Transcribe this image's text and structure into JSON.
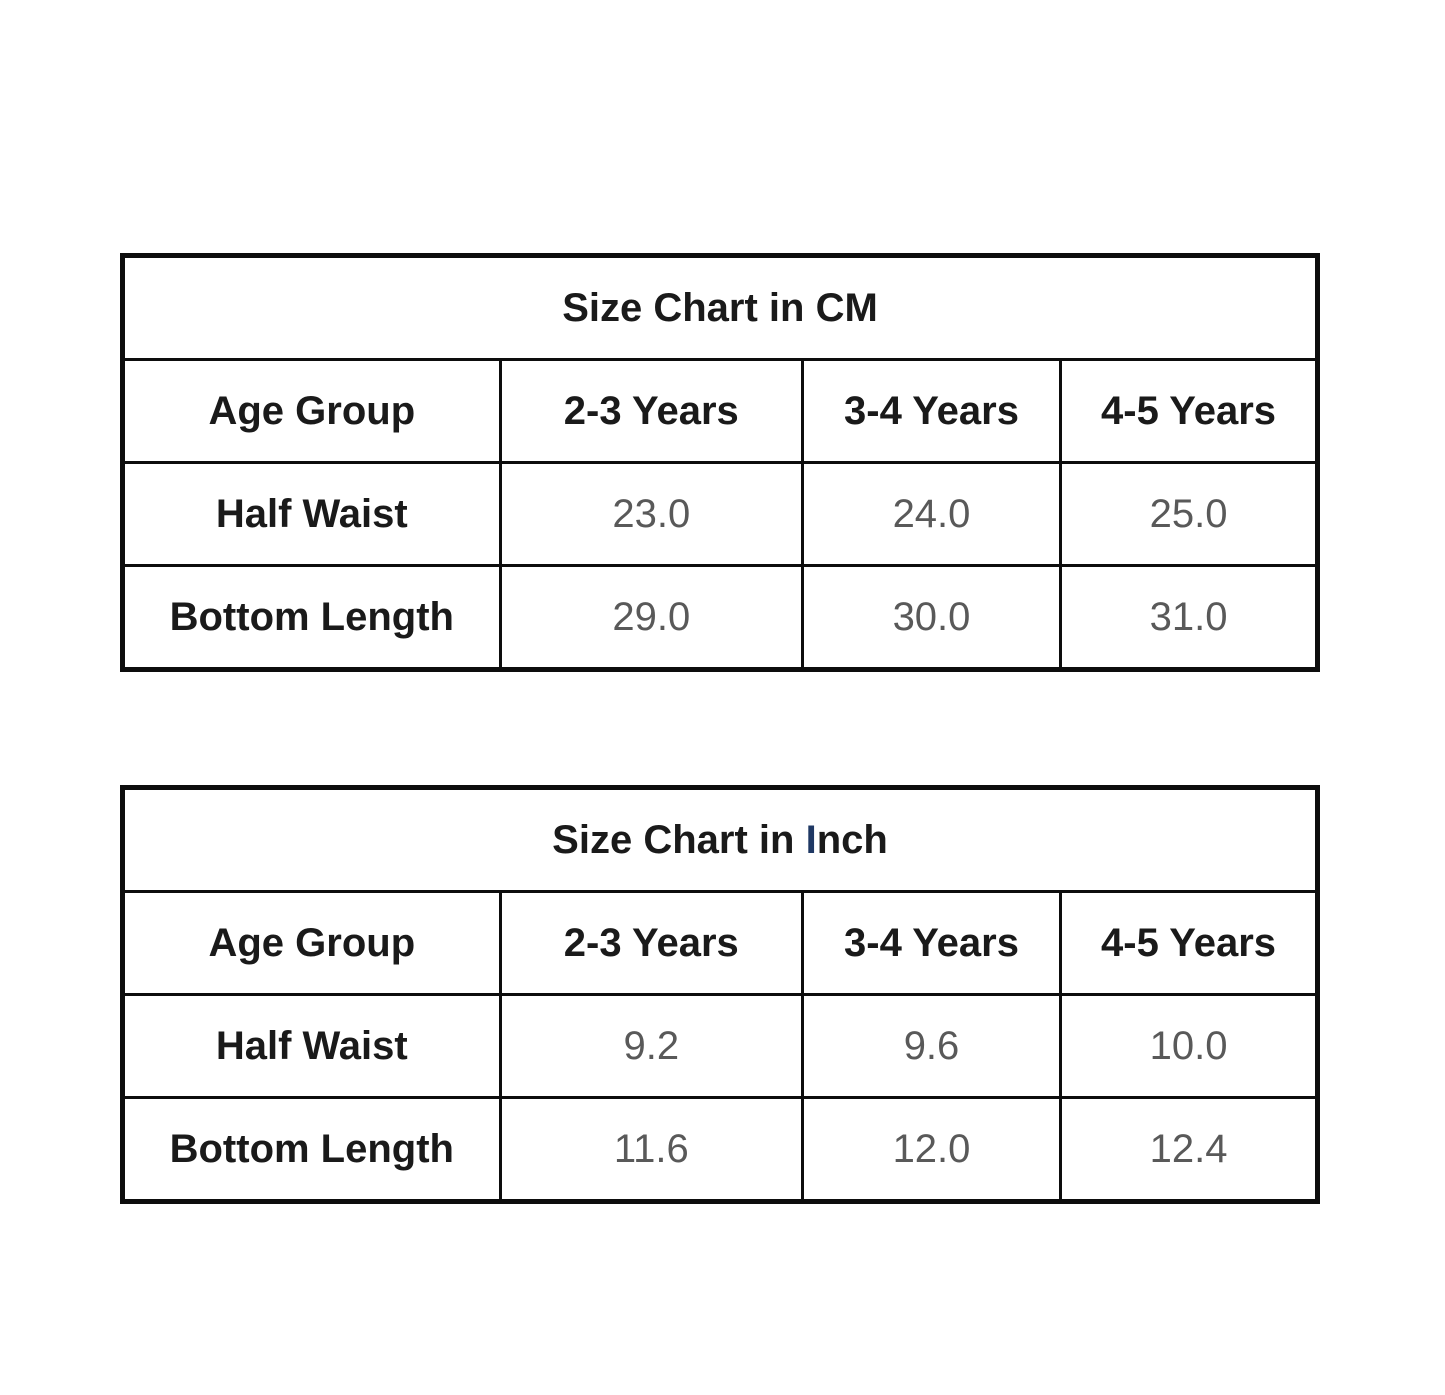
{
  "page": {
    "background": "#ffffff"
  },
  "colors": {
    "border": "#0d0d0d",
    "heading_text": "#1a1a1a",
    "value_text": "#595959",
    "inch_accent_letter": "#1f3864"
  },
  "tables": [
    {
      "name": "size-chart-cm",
      "title": {
        "main": "Size Chart in CM",
        "accent": "",
        "rest": ""
      },
      "header": [
        "Age Group",
        "2-3 Years",
        "3-4 Years",
        "4-5 Years"
      ],
      "rows": [
        {
          "label": "Half Waist",
          "values": [
            "23.0",
            "24.0",
            "25.0"
          ]
        },
        {
          "label": "Bottom Length",
          "values": [
            "29.0",
            "30.0",
            "31.0"
          ]
        }
      ]
    },
    {
      "name": "size-chart-inch",
      "title": {
        "main": "Size Chart in ",
        "accent": "I",
        "rest": "nch"
      },
      "header": [
        "Age Group",
        "2-3 Years",
        "3-4 Years",
        "4-5 Years"
      ],
      "rows": [
        {
          "label": "Half Waist",
          "values": [
            "9.2",
            "9.6",
            "10.0"
          ]
        },
        {
          "label": "Bottom Length",
          "values": [
            "11.6",
            "12.0",
            "12.4"
          ]
        }
      ]
    }
  ],
  "chart_data": [
    {
      "type": "table",
      "title": "Size Chart in CM",
      "columns": [
        "Age Group",
        "2-3 Years",
        "3-4 Years",
        "4-5 Years"
      ],
      "rows": [
        [
          "Half Waist",
          23.0,
          24.0,
          25.0
        ],
        [
          "Bottom Length",
          29.0,
          30.0,
          31.0
        ]
      ],
      "units": "cm"
    },
    {
      "type": "table",
      "title": "Size Chart in Inch",
      "columns": [
        "Age Group",
        "2-3 Years",
        "3-4 Years",
        "4-5 Years"
      ],
      "rows": [
        [
          "Half Waist",
          9.2,
          9.6,
          10.0
        ],
        [
          "Bottom Length",
          11.6,
          12.0,
          12.4
        ]
      ],
      "units": "inch"
    }
  ]
}
